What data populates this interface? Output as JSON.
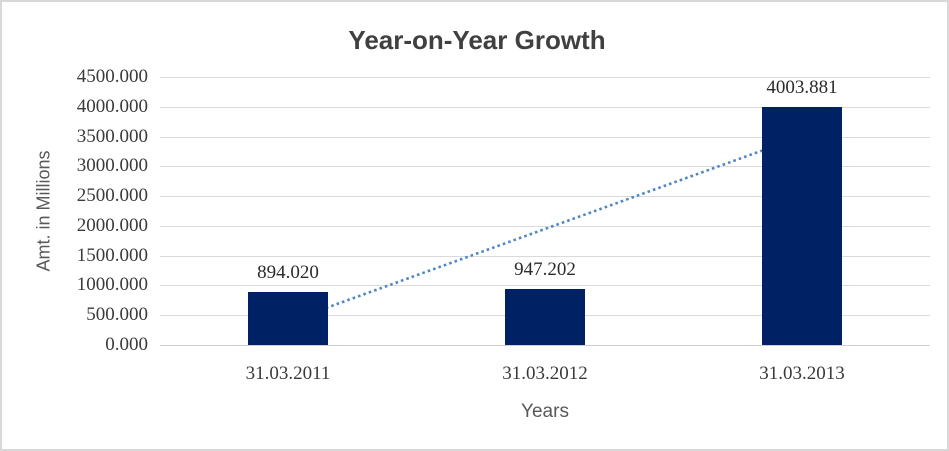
{
  "window": {
    "background": "#ffffff",
    "border_color": "#d8d8d8"
  },
  "chart_data": {
    "type": "bar",
    "title": "Year-on-Year Growth",
    "xlabel": "Years",
    "ylabel": "Amt. in Millions",
    "categories": [
      "31.03.2011",
      "31.03.2012",
      "31.03.2013"
    ],
    "values": [
      894.02,
      947.202,
      4003.881
    ],
    "data_labels": [
      "894.020",
      "947.202",
      "4003.881"
    ],
    "ylim": [
      0,
      4500
    ],
    "ytick_interval": 500,
    "ytick_labels_top_to_bottom": [
      "4500.000",
      "4000.000",
      "3500.000",
      "3000.000",
      "2500.000",
      "2000.000",
      "1500.000",
      "1000.000",
      "500.000",
      "0.000"
    ],
    "grid": true,
    "legend": "none",
    "bar_color": "#002264",
    "gridline_color": "#dadada",
    "trendline": {
      "type": "linear",
      "style": "dotted",
      "color": "#4f87c6",
      "start_value": 393.4,
      "end_value": 3503.3
    }
  }
}
